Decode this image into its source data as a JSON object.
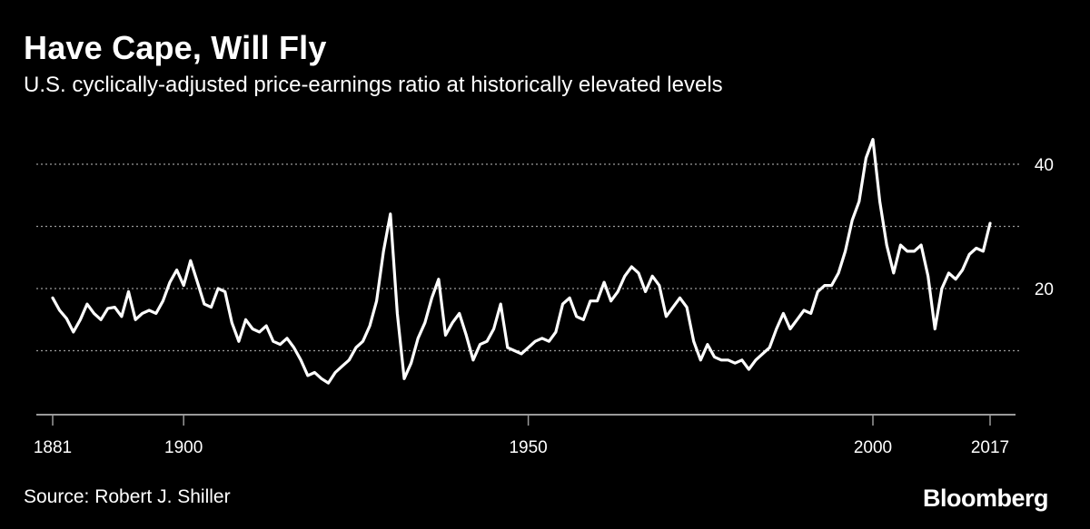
{
  "title": "Have Cape, Will Fly",
  "subtitle": "U.S. cyclically-adjusted price-earnings ratio at historically elevated levels",
  "source": "Source: Robert J. Shiller",
  "brand": "Bloomberg",
  "colors": {
    "background": "#000000",
    "line": "#ffffff",
    "grid": "#9a9a9a",
    "text": "#ffffff"
  },
  "chart_data": {
    "type": "line",
    "title": "Have Cape, Will Fly",
    "subtitle": "U.S. cyclically-adjusted price-earnings ratio at historically elevated levels",
    "xlabel": "",
    "ylabel": "",
    "xlim": [
      1881,
      2017
    ],
    "ylim": [
      0,
      45
    ],
    "x_ticks": [
      {
        "value": 1881,
        "label": "1881"
      },
      {
        "value": 1900,
        "label": "1900"
      },
      {
        "value": 1950,
        "label": "1950"
      },
      {
        "value": 2000,
        "label": "2000"
      },
      {
        "value": 2017,
        "label": "2017"
      }
    ],
    "y_ticks": [
      {
        "value": 40,
        "label": "40"
      },
      {
        "value": 20,
        "label": "20"
      }
    ],
    "gridlines": [
      10,
      20,
      30,
      40
    ],
    "grid": "horizontal-dotted",
    "y_axis_side": "right",
    "series": [
      {
        "name": "CAPE",
        "points": [
          [
            1881,
            18.5
          ],
          [
            1882,
            16.5
          ],
          [
            1883,
            15.2
          ],
          [
            1884,
            13.0
          ],
          [
            1885,
            15.0
          ],
          [
            1886,
            17.5
          ],
          [
            1887,
            16.0
          ],
          [
            1888,
            15.0
          ],
          [
            1889,
            16.8
          ],
          [
            1890,
            17.0
          ],
          [
            1891,
            15.5
          ],
          [
            1892,
            19.5
          ],
          [
            1893,
            15.0
          ],
          [
            1894,
            16.0
          ],
          [
            1895,
            16.5
          ],
          [
            1896,
            16.0
          ],
          [
            1897,
            18.0
          ],
          [
            1898,
            21.0
          ],
          [
            1899,
            23.0
          ],
          [
            1900,
            20.5
          ],
          [
            1901,
            24.5
          ],
          [
            1902,
            21.0
          ],
          [
            1903,
            17.5
          ],
          [
            1904,
            17.0
          ],
          [
            1905,
            20.0
          ],
          [
            1906,
            19.5
          ],
          [
            1907,
            14.5
          ],
          [
            1908,
            11.5
          ],
          [
            1909,
            15.0
          ],
          [
            1910,
            13.5
          ],
          [
            1911,
            13.0
          ],
          [
            1912,
            14.0
          ],
          [
            1913,
            11.5
          ],
          [
            1914,
            11.0
          ],
          [
            1915,
            12.0
          ],
          [
            1916,
            10.5
          ],
          [
            1917,
            8.5
          ],
          [
            1918,
            6.0
          ],
          [
            1919,
            6.5
          ],
          [
            1920,
            5.5
          ],
          [
            1921,
            4.8
          ],
          [
            1922,
            6.5
          ],
          [
            1923,
            7.5
          ],
          [
            1924,
            8.5
          ],
          [
            1925,
            10.5
          ],
          [
            1926,
            11.5
          ],
          [
            1927,
            14.0
          ],
          [
            1928,
            18.0
          ],
          [
            1929,
            26.0
          ],
          [
            1930,
            32.0
          ],
          [
            1931,
            16.0
          ],
          [
            1932,
            5.5
          ],
          [
            1933,
            8.0
          ],
          [
            1934,
            12.0
          ],
          [
            1935,
            14.5
          ],
          [
            1936,
            18.5
          ],
          [
            1937,
            21.5
          ],
          [
            1938,
            12.5
          ],
          [
            1939,
            14.5
          ],
          [
            1940,
            16.0
          ],
          [
            1941,
            12.5
          ],
          [
            1942,
            8.5
          ],
          [
            1943,
            11.0
          ],
          [
            1944,
            11.5
          ],
          [
            1945,
            13.5
          ],
          [
            1946,
            17.5
          ],
          [
            1947,
            10.5
          ],
          [
            1948,
            10.0
          ],
          [
            1949,
            9.5
          ],
          [
            1950,
            10.5
          ],
          [
            1951,
            11.5
          ],
          [
            1952,
            12.0
          ],
          [
            1953,
            11.5
          ],
          [
            1954,
            13.0
          ],
          [
            1955,
            17.5
          ],
          [
            1956,
            18.5
          ],
          [
            1957,
            15.5
          ],
          [
            1958,
            15.0
          ],
          [
            1959,
            18.0
          ],
          [
            1960,
            18.0
          ],
          [
            1961,
            21.0
          ],
          [
            1962,
            18.0
          ],
          [
            1963,
            19.5
          ],
          [
            1964,
            22.0
          ],
          [
            1965,
            23.5
          ],
          [
            1966,
            22.5
          ],
          [
            1967,
            19.5
          ],
          [
            1968,
            22.0
          ],
          [
            1969,
            20.5
          ],
          [
            1970,
            15.5
          ],
          [
            1971,
            17.0
          ],
          [
            1972,
            18.5
          ],
          [
            1973,
            17.0
          ],
          [
            1974,
            11.5
          ],
          [
            1975,
            8.5
          ],
          [
            1976,
            11.0
          ],
          [
            1977,
            9.0
          ],
          [
            1978,
            8.5
          ],
          [
            1979,
            8.5
          ],
          [
            1980,
            8.0
          ],
          [
            1981,
            8.5
          ],
          [
            1982,
            7.0
          ],
          [
            1983,
            8.5
          ],
          [
            1984,
            9.5
          ],
          [
            1985,
            10.5
          ],
          [
            1986,
            13.5
          ],
          [
            1987,
            16.0
          ],
          [
            1988,
            13.5
          ],
          [
            1989,
            15.0
          ],
          [
            1990,
            16.5
          ],
          [
            1991,
            16.0
          ],
          [
            1992,
            19.5
          ],
          [
            1993,
            20.5
          ],
          [
            1994,
            20.5
          ],
          [
            1995,
            22.5
          ],
          [
            1996,
            26.0
          ],
          [
            1997,
            31.0
          ],
          [
            1998,
            34.0
          ],
          [
            1999,
            41.0
          ],
          [
            2000,
            44.0
          ],
          [
            2001,
            34.0
          ],
          [
            2002,
            27.0
          ],
          [
            2003,
            22.5
          ],
          [
            2004,
            27.0
          ],
          [
            2005,
            26.0
          ],
          [
            2006,
            26.0
          ],
          [
            2007,
            27.0
          ],
          [
            2008,
            22.0
          ],
          [
            2009,
            13.5
          ],
          [
            2010,
            20.0
          ],
          [
            2011,
            22.5
          ],
          [
            2012,
            21.5
          ],
          [
            2013,
            23.0
          ],
          [
            2014,
            25.5
          ],
          [
            2015,
            26.5
          ],
          [
            2016,
            26.0
          ],
          [
            2017,
            30.5
          ]
        ]
      }
    ]
  }
}
